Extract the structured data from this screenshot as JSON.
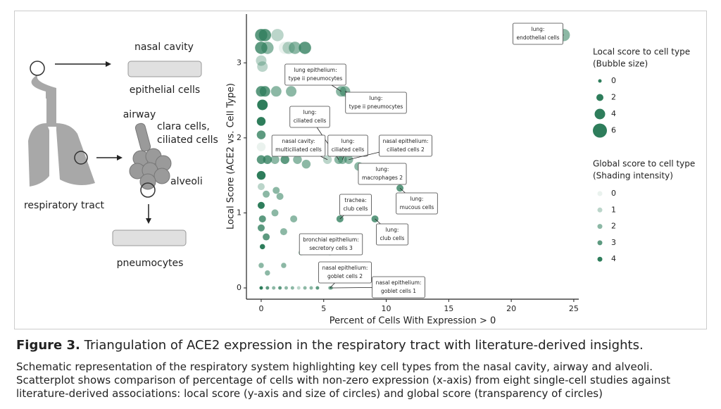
{
  "schematic": {
    "labels": [
      "nasal cavity",
      "epithelial cells",
      "airway",
      "clara cells,",
      "ciliated cells",
      "alveoli",
      "respiratory tract",
      "pneumocytes"
    ]
  },
  "chart_data": {
    "type": "scatter",
    "x_label": "Percent of Cells With Expression > 0",
    "y_label": "Local Score (ACE2 vs. Cell Type)",
    "xlim": [
      -1.18,
      25.4
    ],
    "ylim": [
      -0.15,
      3.65
    ],
    "xticks": [
      0,
      5,
      10,
      15,
      20,
      25
    ],
    "yticks": [
      0,
      1,
      2,
      3
    ],
    "color": "#2e7d5b",
    "x": [
      24.2,
      6.4,
      6.7,
      6.2,
      5.3,
      6.5,
      7.0,
      7.8,
      11.1,
      6.3,
      9.1,
      5.5,
      5.5,
      5.6,
      0,
      0.3,
      1.3,
      0,
      0.5,
      1.9,
      2.2,
      2.7,
      3.5,
      0,
      0.1,
      0,
      0.3,
      1.2,
      2.4,
      0.1,
      0,
      0,
      0,
      0,
      0.5,
      1.1,
      1.9,
      2.9,
      3.6,
      0,
      0,
      0.4,
      1.2,
      1.5,
      0,
      0.1,
      1.1,
      2.6,
      0,
      1.8,
      0.4,
      0.1,
      3.2,
      0,
      1.8,
      0.5,
      0,
      0.5,
      1,
      1.5,
      2,
      2.5,
      3,
      3.5,
      4,
      4.5
    ],
    "y": [
      3.37,
      2.62,
      2.62,
      1.71,
      1.71,
      1.71,
      1.71,
      1.62,
      1.33,
      0.92,
      0.92,
      0.47,
      0,
      0,
      3.37,
      3.37,
      3.37,
      3.2,
      3.2,
      3.2,
      3.2,
      3.2,
      3.2,
      3.03,
      2.95,
      2.62,
      2.62,
      2.62,
      2.62,
      2.44,
      2.22,
      2.04,
      1.88,
      1.71,
      1.71,
      1.71,
      1.71,
      1.71,
      1.65,
      1.5,
      1.35,
      1.25,
      1.3,
      1.22,
      1.1,
      0.92,
      1,
      0.92,
      0.8,
      0.75,
      0.68,
      0.55,
      0.47,
      0.3,
      0.3,
      0.2,
      0,
      0,
      0,
      0,
      0,
      0,
      0,
      0,
      0,
      0
    ],
    "sizes": [
      5,
      4,
      4,
      3,
      3,
      3,
      3,
      3,
      2,
      2,
      2,
      1,
      0,
      0,
      5,
      5,
      5,
      5,
      5,
      5,
      5,
      5,
      5,
      4,
      4,
      4,
      4,
      4,
      4,
      4,
      3,
      3,
      3,
      3,
      3,
      3,
      3,
      3,
      3,
      3,
      2,
      2,
      2,
      2,
      2,
      2,
      2,
      2,
      2,
      2,
      2,
      1,
      1,
      1,
      1,
      1,
      0,
      0,
      0,
      0,
      0,
      0,
      0,
      0,
      0,
      0
    ],
    "shades": [
      2,
      2,
      2,
      2,
      1,
      2,
      2,
      2,
      3,
      3,
      3,
      2,
      2,
      2,
      3,
      3,
      1,
      3,
      2,
      0,
      1,
      2,
      3,
      1,
      1,
      3,
      3,
      2,
      2,
      4,
      4,
      3,
      0,
      3,
      3,
      2,
      3,
      2,
      2,
      4,
      1,
      2,
      2,
      2,
      4,
      3,
      2,
      2,
      3,
      2,
      3,
      4,
      2,
      2,
      2,
      2,
      4,
      3,
      2,
      3,
      2,
      2,
      1,
      2,
      2,
      3
    ],
    "point_labels": [
      [
        "lung:",
        "endothelial cells"
      ],
      [
        "lung epithelium:",
        "type ii pneumocytes"
      ],
      [
        "lung:",
        "type ii pneumocytes"
      ],
      [
        "lung:",
        "ciliated cells"
      ],
      [
        "nasal cavity:",
        "multiciliated cells"
      ],
      [
        "lung:",
        "ciliated cells"
      ],
      [
        "nasal epithelium:",
        "ciliated cells 2"
      ],
      [
        "lung:",
        "macrophages 2"
      ],
      [
        "lung:",
        "mucous cells"
      ],
      [
        "trachea:",
        "club cells"
      ],
      [
        "lung:",
        "club cells"
      ],
      [
        "bronchial epithelium:",
        "secretory cells 3"
      ],
      [
        "nasal epithelium:",
        "goblet cells 2"
      ],
      [
        "nasal epithelium:",
        "goblet cells 1"
      ],
      null,
      null,
      null,
      null,
      null,
      null,
      null,
      null,
      null,
      null,
      null,
      null,
      null,
      null,
      null,
      null,
      null,
      null,
      null,
      null,
      null,
      null,
      null,
      null,
      null,
      null,
      null,
      null,
      null,
      null,
      null,
      null,
      null,
      null,
      null,
      null,
      null,
      null,
      null,
      null,
      null,
      null,
      null,
      null,
      null,
      null,
      null,
      null,
      null,
      null,
      null,
      null
    ],
    "size_legend": {
      "title": [
        "Local score to cell type",
        "(Bubble size)"
      ],
      "values": [
        0,
        2,
        4,
        6
      ]
    },
    "shade_legend": {
      "title": [
        "Global score to cell type",
        "(Shading intensity)"
      ],
      "values": [
        0,
        1,
        2,
        3,
        4
      ]
    }
  },
  "caption": {
    "label": "Figure 3.",
    "title": "Triangulation of ACE2 expression in the respiratory tract with literature-derived insights.",
    "body": "Schematic representation of the respiratory system highlighting key cell types from the nasal cavity, airway and alveoli. Scatterplot shows comparison of percentage of cells with non-zero expression (x-axis) from eight single-cell studies against literature-derived associations: local score (y-axis and size of circles) and global score (transparency of circles)"
  }
}
